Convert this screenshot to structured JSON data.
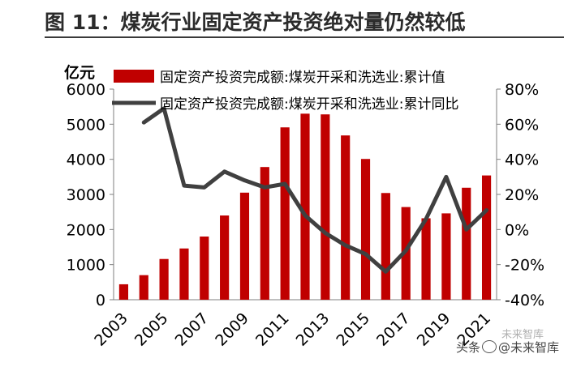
{
  "header": {
    "title": "图 11：煤炭行业固定资产投资绝对量仍然较低"
  },
  "watermark": {
    "prefix": "头条",
    "handle": "@未来智库",
    "faint": "未来智库"
  },
  "chart_data": {
    "type": "bar+line",
    "title": "图 11：煤炭行业固定资产投资绝对量仍然较低",
    "left_axis": {
      "unit": "亿元",
      "range": [
        0,
        6000
      ],
      "ticks": [
        "0",
        "1000",
        "2000",
        "3000",
        "4000",
        "5000",
        "6000"
      ]
    },
    "right_axis": {
      "range": [
        -40,
        80
      ],
      "ticks": [
        "-40%",
        "-20%",
        "0%",
        "20%",
        "40%",
        "60%",
        "80%"
      ]
    },
    "x_tick_labels": [
      "2003",
      "2005",
      "2007",
      "2009",
      "2011",
      "2013",
      "2015",
      "2017",
      "2019",
      "2021"
    ],
    "categories": [
      2003,
      2004,
      2005,
      2006,
      2007,
      2008,
      2009,
      2010,
      2011,
      2012,
      2013,
      2014,
      2015,
      2016,
      2017,
      2018,
      2019,
      2020,
      2021
    ],
    "legend_position": "top",
    "colors": {
      "bar": "#c00000",
      "line": "#404040"
    },
    "series": [
      {
        "name": "固定资产投资完成额:煤炭开采和洗选业:累计值",
        "type": "bar",
        "axis": "left",
        "values": [
          440,
          700,
          1160,
          1460,
          1800,
          2400,
          3050,
          3780,
          4910,
          5300,
          5280,
          4680,
          4010,
          3040,
          2640,
          2320,
          2460,
          3190,
          3540
        ]
      },
      {
        "name": "固定资产投资完成额:煤炭开采和洗选业:累计同比",
        "type": "line",
        "axis": "right",
        "values": [
          null,
          61,
          69,
          25,
          24,
          33,
          28,
          24,
          26,
          8,
          -2,
          -9,
          -14,
          -24,
          -12,
          6,
          30,
          0,
          11
        ]
      }
    ]
  }
}
